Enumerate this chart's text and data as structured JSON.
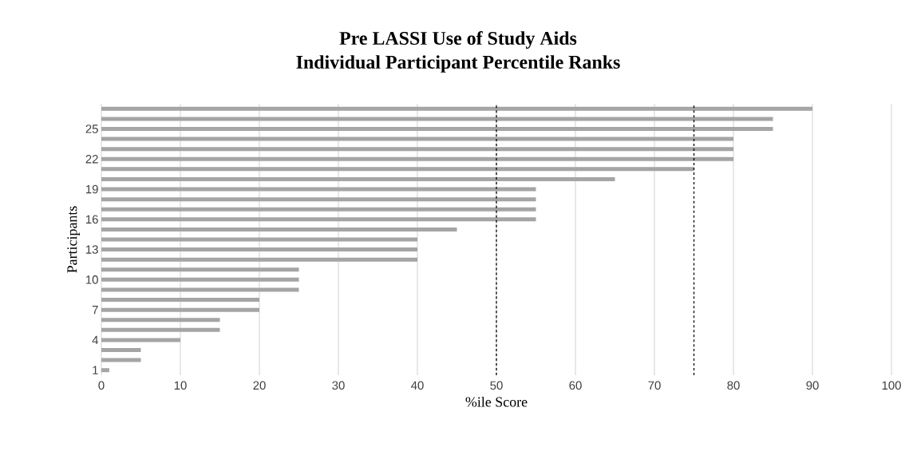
{
  "chart_data": {
    "type": "bar",
    "orientation": "horizontal",
    "title": "Pre LASSI Use of Study Aids",
    "subtitle": "Individual Participant Percentile Ranks",
    "xlabel": "%ile Score",
    "ylabel": "Participants",
    "categories": [
      null,
      null,
      "25",
      null,
      null,
      "22",
      null,
      null,
      "19",
      null,
      null,
      "16",
      null,
      null,
      "13",
      null,
      null,
      "10",
      null,
      null,
      "7",
      null,
      null,
      "4",
      null,
      null,
      "1"
    ],
    "values": [
      90,
      85,
      85,
      80,
      80,
      80,
      75,
      65,
      55,
      55,
      55,
      55,
      45,
      40,
      40,
      40,
      25,
      25,
      25,
      20,
      20,
      15,
      15,
      10,
      5,
      5,
      1
    ],
    "color": "#a5a5a5",
    "xlim": [
      0,
      100
    ],
    "xticks": [
      0,
      10,
      20,
      30,
      40,
      50,
      60,
      70,
      80,
      90,
      100
    ],
    "grid": "x",
    "ref_lines": [
      {
        "axis": "x",
        "value": 50,
        "color": "#000000",
        "line_style": "dashed"
      },
      {
        "axis": "x",
        "value": 75,
        "color": "#000000",
        "line_style": "dashed"
      }
    ]
  }
}
